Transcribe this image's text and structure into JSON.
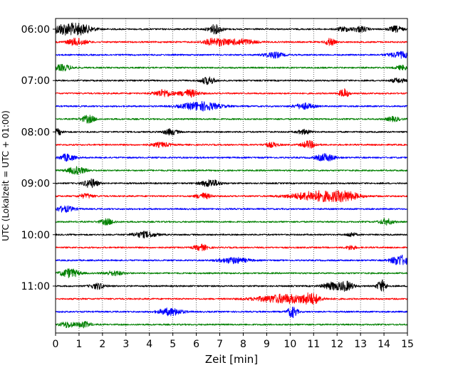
{
  "chart_data": {
    "type": "line",
    "title": "",
    "xlabel": "Zeit  [min]",
    "ylabel": "UTC (Lokalzeit = UTC + 01:00)",
    "xlim": [
      0,
      15
    ],
    "x_ticks": [
      "0",
      "1",
      "2",
      "3",
      "4",
      "5",
      "6",
      "7",
      "8",
      "9",
      "10",
      "11",
      "12",
      "13",
      "14",
      "15"
    ],
    "y_ticks": [
      "06:00",
      "07:00",
      "08:00",
      "09:00",
      "10:00",
      "11:00"
    ],
    "grid": "vertical dotted lines at each minute",
    "trace_interval_min": 15,
    "trace_colors": [
      "#000000",
      "#ff0000",
      "#0000ff",
      "#008000"
    ],
    "traces": [
      {
        "start": "06:00",
        "color": "#000000",
        "events": [
          [
            0.5,
            9,
            0.6
          ],
          [
            1.2,
            4,
            0.5
          ],
          [
            6.8,
            6,
            0.3
          ],
          [
            12.3,
            3,
            0.3
          ],
          [
            13.0,
            4,
            0.3
          ],
          [
            14.5,
            4,
            0.3
          ]
        ]
      },
      {
        "start": "06:15",
        "color": "#ff0000",
        "events": [
          [
            0.9,
            5,
            0.4
          ],
          [
            6.8,
            5,
            0.5
          ],
          [
            7.9,
            4,
            0.6
          ],
          [
            11.7,
            5,
            0.2
          ]
        ]
      },
      {
        "start": "06:30",
        "color": "#0000ff",
        "events": [
          [
            9.3,
            4,
            0.4
          ],
          [
            14.7,
            4,
            0.5
          ]
        ]
      },
      {
        "start": "06:45",
        "color": "#008000",
        "events": [
          [
            0.3,
            4,
            0.4
          ],
          [
            14.8,
            3,
            0.3
          ]
        ]
      },
      {
        "start": "07:00",
        "color": "#000000",
        "events": [
          [
            6.5,
            5,
            0.3
          ],
          [
            14.6,
            3,
            0.3
          ]
        ]
      },
      {
        "start": "07:15",
        "color": "#ff0000",
        "events": [
          [
            4.6,
            5,
            0.4
          ],
          [
            5.7,
            5,
            0.4
          ],
          [
            12.3,
            6,
            0.2
          ]
        ]
      },
      {
        "start": "07:30",
        "color": "#0000ff",
        "events": [
          [
            6.2,
            6,
            0.8
          ],
          [
            10.6,
            4,
            0.4
          ]
        ]
      },
      {
        "start": "07:45",
        "color": "#008000",
        "events": [
          [
            1.4,
            5,
            0.3
          ],
          [
            14.4,
            3,
            0.3
          ]
        ]
      },
      {
        "start": "08:00",
        "color": "#000000",
        "events": [
          [
            0.1,
            4,
            0.2
          ],
          [
            4.9,
            4,
            0.3
          ],
          [
            10.6,
            3,
            0.3
          ]
        ]
      },
      {
        "start": "08:15",
        "color": "#ff0000",
        "events": [
          [
            4.5,
            3,
            0.4
          ],
          [
            9.2,
            3,
            0.3
          ],
          [
            10.8,
            5,
            0.3
          ]
        ]
      },
      {
        "start": "08:30",
        "color": "#0000ff",
        "events": [
          [
            0.5,
            5,
            0.3
          ],
          [
            11.5,
            5,
            0.4
          ]
        ]
      },
      {
        "start": "08:45",
        "color": "#008000",
        "events": [
          [
            0.9,
            5,
            0.4
          ]
        ]
      },
      {
        "start": "09:00",
        "color": "#000000",
        "events": [
          [
            1.5,
            6,
            0.3
          ],
          [
            6.6,
            5,
            0.4
          ]
        ]
      },
      {
        "start": "09:15",
        "color": "#ff0000",
        "events": [
          [
            1.3,
            3,
            0.3
          ],
          [
            6.3,
            4,
            0.3
          ],
          [
            11.3,
            7,
            1.2
          ],
          [
            12.4,
            4,
            0.5
          ]
        ]
      },
      {
        "start": "09:30",
        "color": "#0000ff",
        "events": [
          [
            0.4,
            4,
            0.4
          ]
        ]
      },
      {
        "start": "09:45",
        "color": "#008000",
        "events": [
          [
            2.2,
            4,
            0.3
          ],
          [
            14.1,
            4,
            0.3
          ]
        ]
      },
      {
        "start": "10:00",
        "color": "#000000",
        "events": [
          [
            3.8,
            4,
            0.5
          ],
          [
            12.6,
            3,
            0.2
          ]
        ]
      },
      {
        "start": "10:15",
        "color": "#ff0000",
        "events": [
          [
            6.2,
            4,
            0.3
          ],
          [
            12.6,
            3,
            0.2
          ]
        ]
      },
      {
        "start": "10:30",
        "color": "#0000ff",
        "events": [
          [
            7.6,
            4,
            0.6
          ],
          [
            14.7,
            7,
            0.4
          ]
        ]
      },
      {
        "start": "10:45",
        "color": "#008000",
        "events": [
          [
            0.6,
            6,
            0.4
          ],
          [
            2.5,
            3,
            0.4
          ]
        ]
      },
      {
        "start": "11:00",
        "color": "#000000",
        "events": [
          [
            1.8,
            4,
            0.3
          ],
          [
            11.8,
            5,
            0.4
          ],
          [
            12.4,
            6,
            0.3
          ],
          [
            13.9,
            8,
            0.2
          ]
        ]
      },
      {
        "start": "11:15",
        "color": "#ff0000",
        "events": [
          [
            9.8,
            6,
            1.2
          ],
          [
            10.9,
            7,
            0.3
          ]
        ]
      },
      {
        "start": "11:30",
        "color": "#0000ff",
        "events": [
          [
            4.9,
            5,
            0.5
          ],
          [
            10.1,
            8,
            0.2
          ]
        ]
      },
      {
        "start": "11:45",
        "color": "#008000",
        "events": [
          [
            0.5,
            4,
            0.3
          ],
          [
            1.2,
            4,
            0.3
          ]
        ]
      }
    ]
  }
}
